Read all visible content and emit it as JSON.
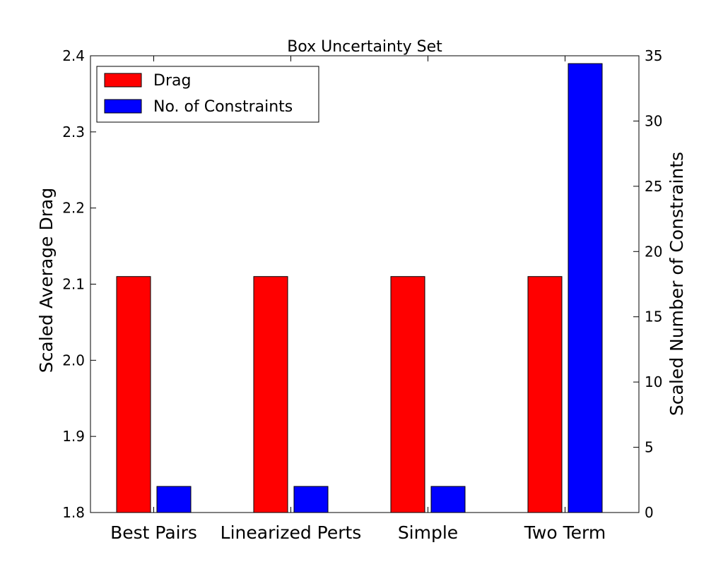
{
  "chart_data": {
    "type": "bar",
    "title": "Box Uncertainty Set",
    "categories": [
      "Best Pairs",
      "Linearized Perts",
      "Simple",
      "Two Term"
    ],
    "series": [
      {
        "name": "Drag",
        "axis": "left",
        "color": "#ff0000",
        "values": [
          2.11,
          2.11,
          2.11,
          2.11
        ]
      },
      {
        "name": "No. of Constraints",
        "axis": "right",
        "color": "#0000ff",
        "values": [
          2,
          2,
          2,
          34.4
        ]
      }
    ],
    "ylabel": "Scaled Average Drag",
    "ylim": [
      1.8,
      2.4
    ],
    "yticks": [
      "1.8",
      "1.9",
      "2.0",
      "2.1",
      "2.2",
      "2.3",
      "2.4"
    ],
    "y2label": "Scaled Number of Constraints",
    "y2lim": [
      0,
      35
    ],
    "y2ticks": [
      "0",
      "5",
      "10",
      "15",
      "20",
      "25",
      "30",
      "35"
    ],
    "legend": {
      "position": "top-left"
    },
    "grid": false
  }
}
